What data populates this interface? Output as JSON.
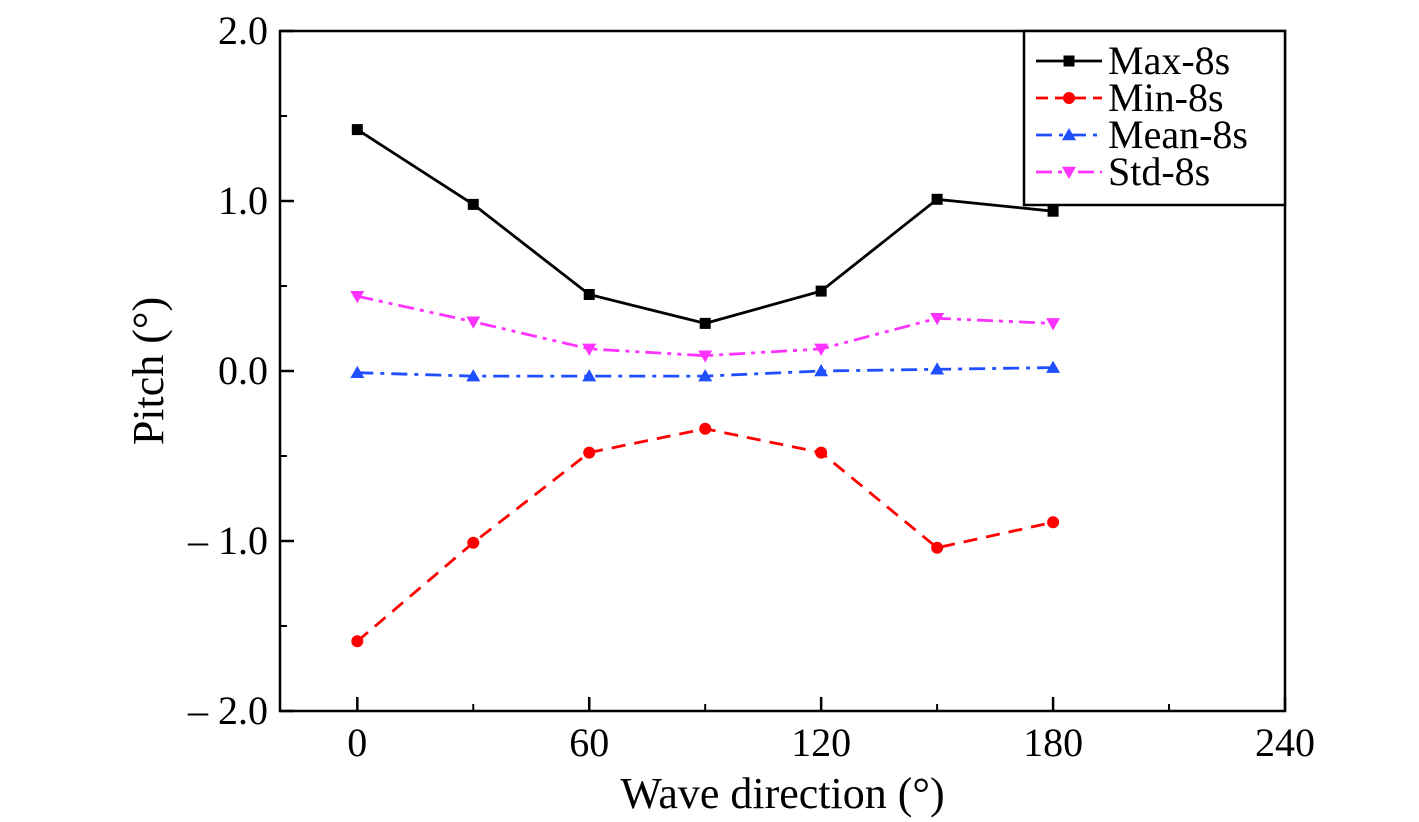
{
  "chart_data": {
    "type": "line",
    "title": "",
    "xlabel": "Wave direction (°)",
    "ylabel": "Pitch (°)",
    "xlim": [
      -20,
      240
    ],
    "ylim": [
      -2.0,
      2.0
    ],
    "x_ticks": [
      0,
      60,
      120,
      180,
      240
    ],
    "x_tick_labels": [
      "0",
      "60",
      "120",
      "180",
      "240"
    ],
    "y_ticks": [
      2.0,
      1.0,
      0.0,
      -1.0,
      -2.0
    ],
    "y_tick_labels": [
      "2.0",
      "1.0",
      "0.0",
      "– 1.0",
      "– 2.0"
    ],
    "grid": false,
    "legend_position": "top-right",
    "x": [
      0,
      30,
      60,
      90,
      120,
      150,
      180
    ],
    "series": [
      {
        "name": "Max-8s",
        "values": [
          1.42,
          0.98,
          0.45,
          0.28,
          0.47,
          1.01,
          0.94
        ],
        "color": "#000000",
        "marker": "square",
        "dash": "solid"
      },
      {
        "name": "Min-8s",
        "values": [
          -1.59,
          -1.01,
          -0.48,
          -0.34,
          -0.48,
          -1.04,
          -0.89
        ],
        "color": "#ff0000",
        "marker": "circle",
        "dash": "dash"
      },
      {
        "name": "Mean-8s",
        "values": [
          -0.01,
          -0.03,
          -0.03,
          -0.03,
          0.0,
          0.01,
          0.02
        ],
        "color": "#1f4fff",
        "marker": "triangle-up",
        "dash": "dashdot"
      },
      {
        "name": "Std-8s",
        "values": [
          0.44,
          0.29,
          0.13,
          0.09,
          0.13,
          0.31,
          0.28
        ],
        "color": "#ff33ff",
        "marker": "triangle-down",
        "dash": "dashdotdot"
      }
    ]
  }
}
